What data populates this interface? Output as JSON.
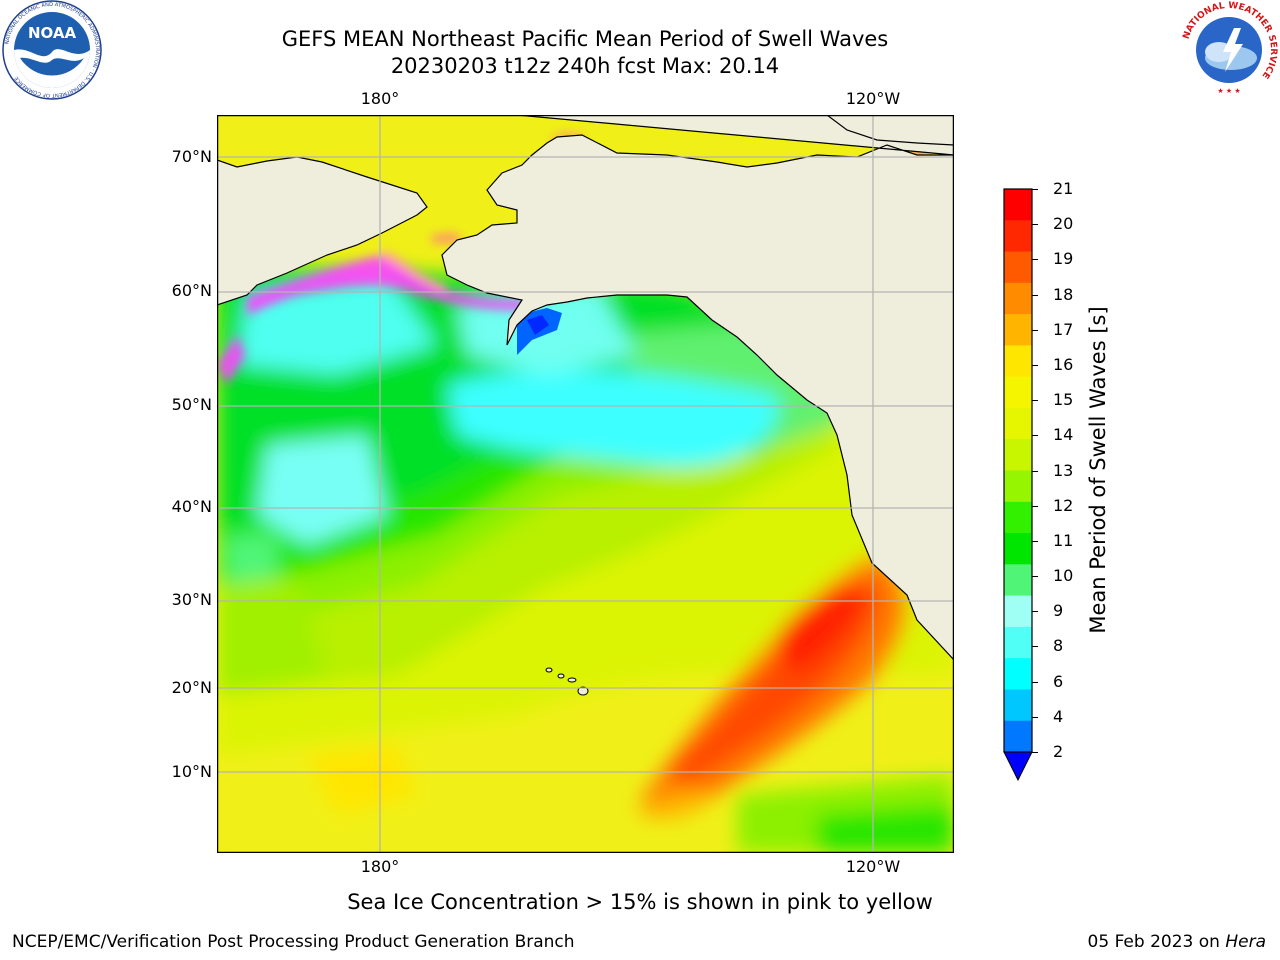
{
  "title": {
    "line1": "GEFS MEAN Northeast Pacific Mean Period of Swell Waves",
    "line2": "20230203 t12z 240h fcst   Max: 20.14"
  },
  "map": {
    "lat_labels": [
      "70°N",
      "60°N",
      "50°N",
      "40°N",
      "30°N",
      "20°N",
      "10°N"
    ],
    "lon_labels_top": [
      "180°",
      "120°W"
    ],
    "lon_labels_bottom": [
      "180°",
      "120°W"
    ],
    "colors": {
      "land": "#efeedd",
      "ocean_warm": "#f0f018",
      "grid": "#b4b4b4"
    }
  },
  "colorbar": {
    "title": "Mean Period of Swell Waves [s]",
    "ticks": [
      "21",
      "20",
      "19",
      "18",
      "17",
      "16",
      "15",
      "14",
      "13",
      "12",
      "11",
      "10",
      "9",
      "8",
      "6",
      "4",
      "2"
    ],
    "colors": [
      "#ff0000",
      "#ff2800",
      "#ff5a00",
      "#ff8c00",
      "#ffb400",
      "#ffe600",
      "#f5f500",
      "#e6f500",
      "#c8f500",
      "#96f500",
      "#32f000",
      "#00e600",
      "#50f578",
      "#a0fff5",
      "#50fff5",
      "#00ffff",
      "#00c8ff",
      "#0078ff"
    ],
    "extend_color": "#0000ff"
  },
  "footnote": "Sea Ice Concentration > 15% is shown in pink to yellow",
  "credit": "NCEP/EMC/Verification Post Processing Product Generation Branch",
  "date": {
    "text": "05 Feb 2023 on ",
    "host": "Hera"
  },
  "logos": {
    "noaa": "NOAA",
    "noaa_ring": "NATIONAL OCEANIC AND ATMOSPHERIC ADMINISTRATION · U.S. DEPARTMENT OF COMMERCE",
    "nws_ring": "NATIONAL WEATHER SERVICE"
  }
}
